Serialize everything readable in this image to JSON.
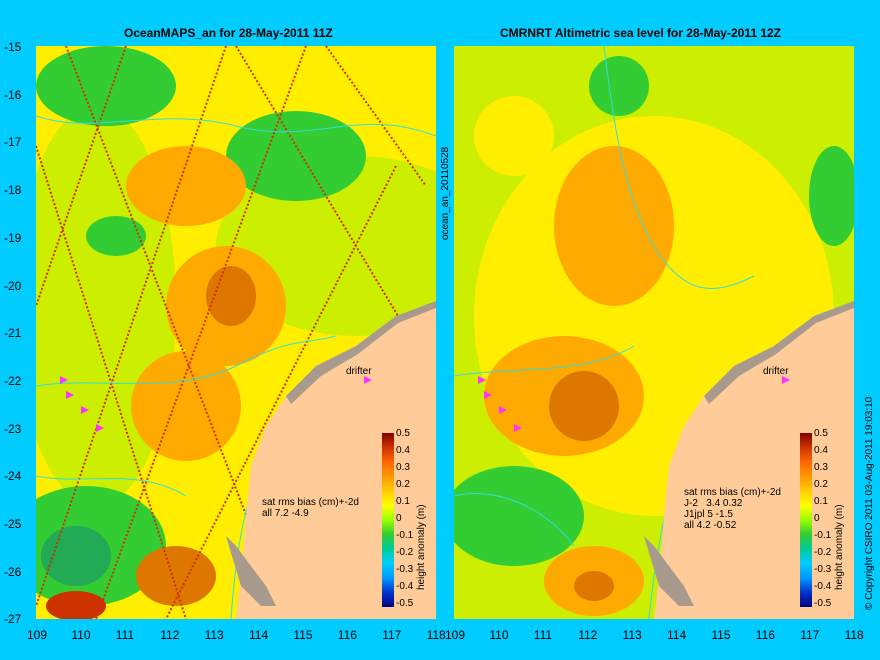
{
  "left_title": "OceanMAPS_an for 28-May-2011 11Z",
  "right_title": "CMRNRT Altimetric sea level  for 28-May-2011 12Z",
  "y_ticks": [
    "-15",
    "-16",
    "-17",
    "-18",
    "-19",
    "-20",
    "-21",
    "-22",
    "-23",
    "-24",
    "-25",
    "-26",
    "-27"
  ],
  "x_ticks_left": [
    "109",
    "110",
    "111",
    "112",
    "113",
    "114",
    "115",
    "116",
    "117",
    "118"
  ],
  "x_ticks_right": [
    "109",
    "110",
    "111",
    "112",
    "113",
    "114",
    "115",
    "116",
    "117",
    "118"
  ],
  "middle_label": "ocean_an_20110528",
  "right_edge_label": "© Copyright CSIRO 2011  03-Aug-2011 19:03:10",
  "drifter_label": "drifter",
  "left_stats": "sat rms bias (cm)+-2d\nall 7.2 -4.9",
  "right_stats": "sat rms bias (cm)+-2d\nJ-2   3.4 0.32\nJ1jpl 5 -1.5\nall 4.2 -0.52",
  "colorbar": {
    "label": "height anomaly (m)",
    "ticks": [
      "0.5",
      "0.4",
      "0.3",
      "0.2",
      "0.1",
      "0",
      "-0.1",
      "-0.2",
      "-0.3",
      "-0.4",
      "-0.5"
    ],
    "colors": [
      "#800000",
      "#cc3300",
      "#ff6600",
      "#ff9900",
      "#ffcc00",
      "#ffff00",
      "#99ff00",
      "#33cc33",
      "#00cc99",
      "#00ccff",
      "#0099ff",
      "#0033cc",
      "#000080"
    ]
  },
  "colors": {
    "background": "#00ccff",
    "land": "#ffcc99",
    "shelf_land": "#a89a8c",
    "green": "#33cc33",
    "yellow_green": "#ccee00",
    "yellow": "#ffee00",
    "orange": "#ffaa00",
    "dark_orange": "#dd7700",
    "contour": "#33dddd",
    "arrow": "#ff33ff"
  }
}
